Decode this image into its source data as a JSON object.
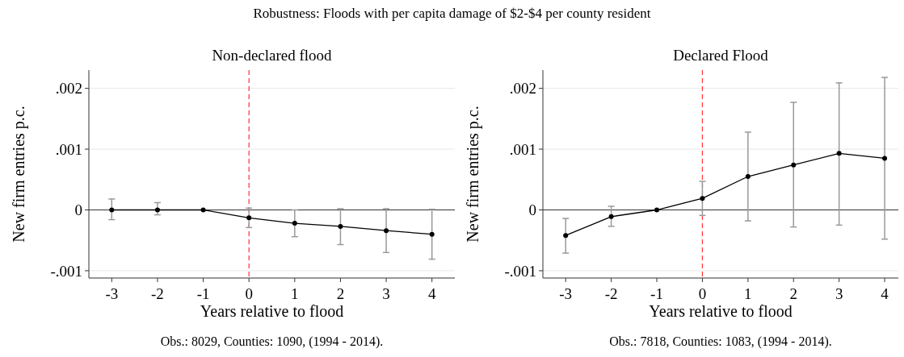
{
  "chart_data": [
    {
      "type": "line",
      "title": "Non-declared flood",
      "xlabel": "Years relative to flood",
      "ylabel": "New firm entries p.c.",
      "annotations": [
        "Robustness: Floods with per capita damage of $2-$4 per county resident",
        "Obs.: 8029, Counties: 1090, (1994 - 2014)."
      ],
      "x": [
        -3,
        -2,
        -1,
        0,
        1,
        2,
        3,
        4
      ],
      "series": [
        {
          "color": "#000000",
          "values": [
            0,
            0,
            0,
            -0.00013,
            -0.00022,
            -0.00027,
            -0.00034,
            -0.0004
          ],
          "errors": [
            [
              -0.00016,
              0.00018
            ],
            [
              -8e-05,
              0.00012
            ],
            null,
            [
              -0.00029,
              3e-05
            ],
            [
              -0.00044,
              0.0
            ],
            [
              -0.00057,
              2e-05
            ],
            [
              -0.0007,
              2e-05
            ],
            [
              -0.00081,
              1e-05
            ]
          ]
        }
      ],
      "xlim": [
        -3.5,
        4.5
      ],
      "xticks": [
        -3,
        -2,
        -1,
        0,
        1,
        2,
        3,
        4
      ],
      "ylim": [
        -0.00112,
        0.0023
      ],
      "yticks": [
        {
          "value": -0.001,
          "label": "-.001"
        },
        0,
        {
          "value": 0.001,
          "label": ".001"
        },
        {
          "value": 0.002,
          "label": ".002"
        }
      ],
      "ref_lines": [
        {
          "axis": "x",
          "value": 0,
          "color": "#ff3333",
          "line_style": "dashed"
        },
        {
          "axis": "y",
          "value": 0,
          "color": "#333333",
          "line_style": "solid"
        }
      ],
      "grid": "y",
      "marker": "circle",
      "line_style": "solid"
    },
    {
      "type": "line",
      "title": "Declared Flood",
      "xlabel": "Years relative to flood",
      "ylabel": "New firm entries p.c.",
      "annotations": [
        "Obs.: 7818, Counties: 1083, (1994 - 2014)."
      ],
      "x": [
        -3,
        -2,
        -1,
        0,
        1,
        2,
        3,
        4
      ],
      "series": [
        {
          "color": "#000000",
          "values": [
            -0.00042,
            -0.00011,
            0,
            0.00019,
            0.00055,
            0.00074,
            0.00093,
            0.00085
          ],
          "errors": [
            [
              -0.00071,
              -0.00014
            ],
            [
              -0.00027,
              6e-05
            ],
            null,
            [
              -9e-05,
              0.00047
            ],
            [
              -0.00018,
              0.00128
            ],
            [
              -0.00028,
              0.00177
            ],
            [
              -0.00025,
              0.00209
            ],
            [
              -0.00048,
              0.00218
            ]
          ]
        }
      ],
      "xlim": [
        -3.5,
        4.3
      ],
      "xticks": [
        -3,
        -2,
        -1,
        0,
        1,
        2,
        3,
        4
      ],
      "ylim": [
        -0.00112,
        0.0023
      ],
      "yticks": [
        {
          "value": -0.001,
          "label": "-.001"
        },
        0,
        {
          "value": 0.001,
          "label": ".001"
        },
        {
          "value": 0.002,
          "label": ".002"
        }
      ],
      "ref_lines": [
        {
          "axis": "x",
          "value": 0,
          "color": "#ff3333",
          "line_style": "dashed"
        },
        {
          "axis": "y",
          "value": 0,
          "color": "#333333",
          "line_style": "solid"
        }
      ],
      "grid": "y",
      "marker": "circle",
      "line_style": "solid"
    }
  ]
}
